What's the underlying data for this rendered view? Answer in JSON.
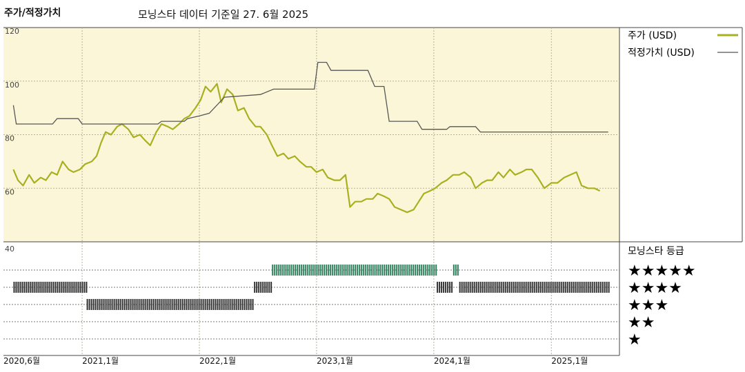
{
  "header": {
    "title": "주가/적정가치",
    "subtitle": "모닝스타 데이터 기준일 27. 6월 2025"
  },
  "legend": {
    "price_label": "주가 (USD)",
    "fair_label": "적정가치 (USD)",
    "price_color": "#a8b020",
    "fair_color": "#555555"
  },
  "rating_box": {
    "title": "모닝스타 등급",
    "stars": [
      "★★★★★",
      "★★★★",
      "★★★",
      "★★",
      "★"
    ],
    "colors": {
      "five": "#2e7d5b",
      "four": "#333333",
      "three": "#333333"
    }
  },
  "chart_data": {
    "type": "line",
    "x_labels": [
      "2020,6월",
      "2021,1월",
      "2022,1월",
      "2023,1월",
      "2024,1월",
      "2025,1월"
    ],
    "y_ticks": [
      120,
      100,
      80,
      60,
      40
    ],
    "ylim": [
      40,
      120
    ],
    "grid": true,
    "legend_position": "top-right",
    "series": [
      {
        "name": "주가 (USD)",
        "points": [
          [
            "2020-06-01",
            67
          ],
          [
            "2020-06-15",
            63
          ],
          [
            "2020-07-01",
            61
          ],
          [
            "2020-07-20",
            65
          ],
          [
            "2020-08-05",
            62
          ],
          [
            "2020-08-25",
            64
          ],
          [
            "2020-09-10",
            63
          ],
          [
            "2020-09-28",
            66
          ],
          [
            "2020-10-15",
            65
          ],
          [
            "2020-11-01",
            70
          ],
          [
            "2020-11-20",
            67
          ],
          [
            "2020-12-05",
            66
          ],
          [
            "2020-12-25",
            67
          ],
          [
            "2021-01-10",
            69
          ],
          [
            "2021-01-31",
            70
          ],
          [
            "2021-02-15",
            72
          ],
          [
            "2021-03-01",
            77
          ],
          [
            "2021-03-15",
            81
          ],
          [
            "2021-04-01",
            80
          ],
          [
            "2021-04-20",
            83
          ],
          [
            "2021-05-05",
            84
          ],
          [
            "2021-05-25",
            82
          ],
          [
            "2021-06-10",
            79
          ],
          [
            "2021-06-30",
            80
          ],
          [
            "2021-07-15",
            78
          ],
          [
            "2021-08-01",
            76
          ],
          [
            "2021-08-20",
            81
          ],
          [
            "2021-09-05",
            84
          ],
          [
            "2021-09-25",
            83
          ],
          [
            "2021-10-10",
            82
          ],
          [
            "2021-10-30",
            84
          ],
          [
            "2021-11-15",
            86
          ],
          [
            "2021-12-01",
            87
          ],
          [
            "2021-12-20",
            90
          ],
          [
            "2022-01-05",
            93
          ],
          [
            "2022-01-20",
            98
          ],
          [
            "2022-02-05",
            96
          ],
          [
            "2022-02-25",
            99
          ],
          [
            "2022-03-10",
            92
          ],
          [
            "2022-03-28",
            97
          ],
          [
            "2022-04-15",
            95
          ],
          [
            "2022-05-01",
            89
          ],
          [
            "2022-05-20",
            90
          ],
          [
            "2022-06-05",
            86
          ],
          [
            "2022-06-25",
            83
          ],
          [
            "2022-07-10",
            83
          ],
          [
            "2022-07-30",
            80
          ],
          [
            "2022-08-15",
            76
          ],
          [
            "2022-09-01",
            72
          ],
          [
            "2022-09-20",
            73
          ],
          [
            "2022-10-05",
            71
          ],
          [
            "2022-10-25",
            72
          ],
          [
            "2022-11-10",
            70
          ],
          [
            "2022-11-30",
            68
          ],
          [
            "2022-12-15",
            68
          ],
          [
            "2023-01-01",
            66
          ],
          [
            "2023-01-20",
            67
          ],
          [
            "2023-02-05",
            64
          ],
          [
            "2023-02-25",
            63
          ],
          [
            "2023-03-15",
            63
          ],
          [
            "2023-04-01",
            65
          ],
          [
            "2023-04-15",
            53
          ],
          [
            "2023-05-01",
            55
          ],
          [
            "2023-05-20",
            55
          ],
          [
            "2023-06-05",
            56
          ],
          [
            "2023-06-25",
            56
          ],
          [
            "2023-07-10",
            58
          ],
          [
            "2023-07-30",
            57
          ],
          [
            "2023-08-15",
            56
          ],
          [
            "2023-09-01",
            53
          ],
          [
            "2023-09-20",
            52
          ],
          [
            "2023-10-10",
            51
          ],
          [
            "2023-10-30",
            52
          ],
          [
            "2023-11-15",
            55
          ],
          [
            "2023-12-01",
            58
          ],
          [
            "2023-12-20",
            59
          ],
          [
            "2024-01-05",
            60
          ],
          [
            "2024-01-25",
            62
          ],
          [
            "2024-02-10",
            63
          ],
          [
            "2024-03-01",
            65
          ],
          [
            "2024-03-20",
            65
          ],
          [
            "2024-04-05",
            66
          ],
          [
            "2024-04-25",
            64
          ],
          [
            "2024-05-10",
            60
          ],
          [
            "2024-05-30",
            62
          ],
          [
            "2024-06-15",
            63
          ],
          [
            "2024-07-01",
            63
          ],
          [
            "2024-07-20",
            66
          ],
          [
            "2024-08-05",
            64
          ],
          [
            "2024-08-25",
            67
          ],
          [
            "2024-09-10",
            65
          ],
          [
            "2024-09-30",
            66
          ],
          [
            "2024-10-15",
            67
          ],
          [
            "2024-11-01",
            67
          ],
          [
            "2024-11-20",
            64
          ],
          [
            "2024-12-10",
            60
          ],
          [
            "2025-01-01",
            62
          ],
          [
            "2025-01-20",
            62
          ],
          [
            "2025-02-10",
            64
          ],
          [
            "2025-03-01",
            65
          ],
          [
            "2025-03-20",
            66
          ],
          [
            "2025-04-05",
            61
          ],
          [
            "2025-04-25",
            60
          ],
          [
            "2025-05-15",
            60
          ],
          [
            "2025-06-01",
            59
          ]
        ]
      },
      {
        "name": "적정가치 (USD)",
        "points": [
          [
            "2020-06-01",
            91
          ],
          [
            "2020-06-10",
            84
          ],
          [
            "2020-10-01",
            84
          ],
          [
            "2020-10-15",
            86
          ],
          [
            "2020-12-20",
            86
          ],
          [
            "2021-01-01",
            84
          ],
          [
            "2021-08-25",
            84
          ],
          [
            "2021-09-05",
            85
          ],
          [
            "2021-11-15",
            85
          ],
          [
            "2021-11-25",
            86
          ],
          [
            "2022-01-01",
            87
          ],
          [
            "2022-02-01",
            88
          ],
          [
            "2022-03-20",
            94
          ],
          [
            "2022-07-10",
            95
          ],
          [
            "2022-08-20",
            97
          ],
          [
            "2022-12-25",
            97
          ],
          [
            "2023-01-05",
            107
          ],
          [
            "2023-02-01",
            107
          ],
          [
            "2023-02-15",
            104
          ],
          [
            "2023-06-10",
            104
          ],
          [
            "2023-07-01",
            98
          ],
          [
            "2023-07-30",
            98
          ],
          [
            "2023-08-15",
            85
          ],
          [
            "2023-11-10",
            85
          ],
          [
            "2023-11-25",
            82
          ],
          [
            "2024-02-10",
            82
          ],
          [
            "2024-02-20",
            83
          ],
          [
            "2024-05-10",
            83
          ],
          [
            "2024-05-25",
            81
          ],
          [
            "2025-06-27",
            81
          ]
        ]
      }
    ],
    "rating_bands": [
      {
        "stars": 4,
        "start": "2020-06-01",
        "end": "2021-01-15"
      },
      {
        "stars": 3,
        "start": "2021-01-15",
        "end": "2022-06-20"
      },
      {
        "stars": 4,
        "start": "2022-06-20",
        "end": "2022-08-15"
      },
      {
        "stars": 5,
        "start": "2022-08-15",
        "end": "2024-01-10"
      },
      {
        "stars": 4,
        "start": "2024-01-10",
        "end": "2024-03-01"
      },
      {
        "stars": 5,
        "start": "2024-03-01",
        "end": "2024-03-20"
      },
      {
        "stars": 4,
        "start": "2024-03-20",
        "end": "2025-06-27"
      }
    ]
  }
}
